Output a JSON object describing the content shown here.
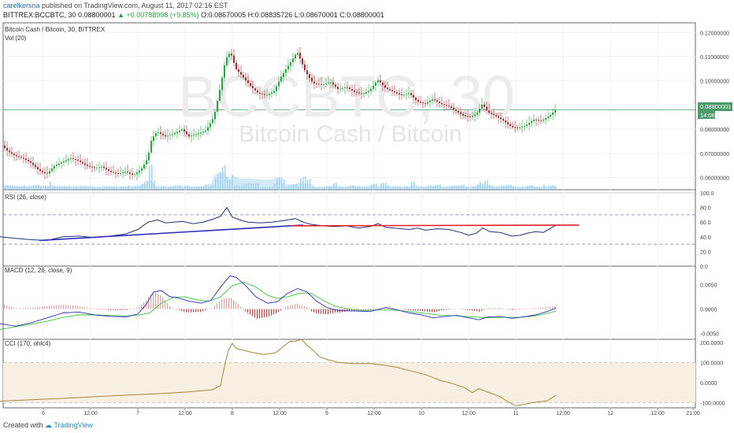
{
  "header": {
    "author": "carelkersna",
    "published": "published on TradingView.com, August 11, 2017 02:16 EST",
    "symbol_line": "BITTREX:BCCBTC, 30  0.08800001",
    "change": "+0.00788998 (+9.85%)",
    "ohlc": "O:0.08670005 H:0.08835726 L:0.08670001 C:0.08800001"
  },
  "footer": {
    "created_with": "Created with",
    "brand": "TradingView"
  },
  "colors": {
    "up": "#26a541",
    "down": "#a12a31",
    "volume": "#9ad0ee",
    "volume_area": "#7ec3ea",
    "rsi_line": "#1e2f7a",
    "rsi_trend_support": "#2e2eb8",
    "rsi_trend_resistance": "#e0212a",
    "macd_line": "#2733b8",
    "signal_line": "#3ec23e",
    "hist_pos": "#e8a0a0",
    "hist_neg": "#d84040",
    "cci_line": "#a8863c",
    "cci_band": "#f6efe2",
    "last_price": "#4a9a6a"
  },
  "chart_data": [
    {
      "type": "candlestick",
      "title": "Bitcoin Cash / Bitcoin, 30, BITTREX",
      "volume_label": "Vol (20)",
      "watermark": "BCCBTC, 30",
      "watermark_sub": "Bitcoin Cash / Bitcoin",
      "y_ticks": [
        "0.12000000",
        "0.11000000",
        "0.10000000",
        "0.09000000",
        "0.08000000",
        "0.07000000",
        "0.06000000"
      ],
      "ylim": [
        0.055,
        0.124
      ],
      "last_price": "0.08800001",
      "countdown": "14:06",
      "x_ticks": [
        "6",
        "12:00",
        "7",
        "12:00",
        "8",
        "12:00",
        "9",
        "12:00",
        "10",
        "12:00",
        "11",
        "12:00",
        "12",
        "12:00",
        "21:00"
      ],
      "close_anchors": [
        [
          0,
          0.0745
        ],
        [
          10,
          0.071
        ],
        [
          20,
          0.069
        ],
        [
          30,
          0.068
        ],
        [
          40,
          0.066
        ],
        [
          50,
          0.063
        ],
        [
          60,
          0.0615
        ],
        [
          70,
          0.065
        ],
        [
          80,
          0.0665
        ],
        [
          90,
          0.068
        ],
        [
          100,
          0.067
        ],
        [
          110,
          0.065
        ],
        [
          120,
          0.064
        ],
        [
          130,
          0.0645
        ],
        [
          140,
          0.0625
        ],
        [
          150,
          0.0615
        ],
        [
          160,
          0.0625
        ],
        [
          170,
          0.061
        ],
        [
          180,
          0.0635
        ],
        [
          188,
          0.068
        ],
        [
          193,
          0.076
        ],
        [
          200,
          0.079
        ],
        [
          210,
          0.077
        ],
        [
          220,
          0.078
        ],
        [
          232,
          0.08
        ],
        [
          240,
          0.077
        ],
        [
          250,
          0.078
        ],
        [
          262,
          0.0795
        ],
        [
          272,
          0.085
        ],
        [
          280,
          0.097
        ],
        [
          287,
          0.109
        ],
        [
          293,
          0.112
        ],
        [
          300,
          0.105
        ],
        [
          308,
          0.102
        ],
        [
          318,
          0.098
        ],
        [
          328,
          0.095
        ],
        [
          338,
          0.094
        ],
        [
          348,
          0.0955
        ],
        [
          358,
          0.102
        ],
        [
          368,
          0.107
        ],
        [
          378,
          0.112
        ],
        [
          388,
          0.104
        ],
        [
          398,
          0.099
        ],
        [
          410,
          0.0985
        ],
        [
          420,
          0.0995
        ],
        [
          430,
          0.0965
        ],
        [
          440,
          0.0975
        ],
        [
          450,
          0.0955
        ],
        [
          460,
          0.0945
        ],
        [
          470,
          0.096
        ],
        [
          480,
          0.1005
        ],
        [
          490,
          0.097
        ],
        [
          500,
          0.0955
        ],
        [
          510,
          0.094
        ],
        [
          520,
          0.095
        ],
        [
          530,
          0.0915
        ],
        [
          540,
          0.0905
        ],
        [
          550,
          0.0925
        ],
        [
          560,
          0.0905
        ],
        [
          570,
          0.0895
        ],
        [
          580,
          0.0875
        ],
        [
          590,
          0.0855
        ],
        [
          598,
          0.085
        ],
        [
          606,
          0.0865
        ],
        [
          613,
          0.0905
        ],
        [
          620,
          0.087
        ],
        [
          630,
          0.0855
        ],
        [
          640,
          0.0835
        ],
        [
          650,
          0.081
        ],
        [
          658,
          0.0805
        ],
        [
          668,
          0.0815
        ],
        [
          678,
          0.084
        ],
        [
          688,
          0.0835
        ],
        [
          698,
          0.0855
        ],
        [
          706,
          0.088
        ]
      ]
    },
    {
      "type": "line",
      "title": "RSI (26, close)",
      "y_ticks": [
        "100.0",
        "80.0",
        "60.0",
        "40.0",
        "20.0",
        "0.0"
      ],
      "ylim": [
        0,
        100
      ],
      "bands": [
        70,
        30
      ],
      "values": [
        [
          0,
          40
        ],
        [
          20,
          38
        ],
        [
          40,
          36
        ],
        [
          60,
          35
        ],
        [
          80,
          40
        ],
        [
          100,
          41
        ],
        [
          120,
          39
        ],
        [
          140,
          41
        ],
        [
          160,
          44
        ],
        [
          175,
          50
        ],
        [
          188,
          60
        ],
        [
          200,
          63
        ],
        [
          210,
          59
        ],
        [
          220,
          60
        ],
        [
          232,
          61
        ],
        [
          245,
          58
        ],
        [
          258,
          60
        ],
        [
          270,
          64
        ],
        [
          280,
          68
        ],
        [
          288,
          80
        ],
        [
          295,
          67
        ],
        [
          305,
          63
        ],
        [
          315,
          60
        ],
        [
          330,
          59
        ],
        [
          345,
          60
        ],
        [
          360,
          62
        ],
        [
          375,
          65
        ],
        [
          385,
          60
        ],
        [
          395,
          57
        ],
        [
          410,
          55
        ],
        [
          425,
          54
        ],
        [
          440,
          55
        ],
        [
          455,
          52
        ],
        [
          470,
          54
        ],
        [
          480,
          58
        ],
        [
          490,
          53
        ],
        [
          500,
          52
        ],
        [
          510,
          51
        ],
        [
          520,
          50
        ],
        [
          530,
          52
        ],
        [
          540,
          49
        ],
        [
          555,
          51
        ],
        [
          570,
          50
        ],
        [
          585,
          46
        ],
        [
          595,
          42
        ],
        [
          605,
          45
        ],
        [
          613,
          52
        ],
        [
          622,
          47
        ],
        [
          635,
          46
        ],
        [
          650,
          41
        ],
        [
          660,
          42
        ],
        [
          670,
          45
        ],
        [
          680,
          47
        ],
        [
          690,
          46
        ],
        [
          698,
          51
        ],
        [
          706,
          56
        ]
      ],
      "trendlines": [
        {
          "role": "support",
          "from": [
            50,
            35
          ],
          "to": [
            385,
            56
          ]
        },
        {
          "role": "resistance",
          "from": [
            370,
            55
          ],
          "to": [
            735,
            56
          ]
        }
      ]
    },
    {
      "type": "line",
      "title": "MACD (12, 26, close, 9)",
      "y_ticks": [
        "0.0050",
        "0.0000",
        "-0.0050"
      ],
      "ylim": [
        -0.0062,
        0.0088
      ],
      "macd": [
        [
          0,
          -0.003
        ],
        [
          20,
          -0.0035
        ],
        [
          40,
          -0.0028
        ],
        [
          60,
          -0.0018
        ],
        [
          80,
          -0.0008
        ],
        [
          100,
          -0.0006
        ],
        [
          120,
          -0.0012
        ],
        [
          140,
          -0.0015
        ],
        [
          160,
          -0.0016
        ],
        [
          175,
          -0.001
        ],
        [
          185,
          0.0008
        ],
        [
          195,
          0.0035
        ],
        [
          205,
          0.0038
        ],
        [
          215,
          0.0026
        ],
        [
          228,
          0.0022
        ],
        [
          240,
          0.0016
        ],
        [
          255,
          0.0012
        ],
        [
          268,
          0.0018
        ],
        [
          280,
          0.0045
        ],
        [
          292,
          0.0068
        ],
        [
          300,
          0.0065
        ],
        [
          312,
          0.0048
        ],
        [
          325,
          0.0025
        ],
        [
          340,
          0.0012
        ],
        [
          352,
          0.0015
        ],
        [
          365,
          0.0032
        ],
        [
          378,
          0.0042
        ],
        [
          390,
          0.0035
        ],
        [
          402,
          0.0016
        ],
        [
          415,
          0.0003
        ],
        [
          430,
          -0.0003
        ],
        [
          450,
          -0.0004
        ],
        [
          470,
          -0.0005
        ],
        [
          490,
          0.0003
        ],
        [
          505,
          -0.0002
        ],
        [
          520,
          -0.0008
        ],
        [
          535,
          -0.0012
        ],
        [
          550,
          -0.0018
        ],
        [
          565,
          -0.0015
        ],
        [
          580,
          -0.0013
        ],
        [
          595,
          -0.0018
        ],
        [
          608,
          -0.0022
        ],
        [
          620,
          -0.0016
        ],
        [
          635,
          -0.0015
        ],
        [
          650,
          -0.0019
        ],
        [
          665,
          -0.0016
        ],
        [
          680,
          -0.0012
        ],
        [
          695,
          -0.0005
        ],
        [
          706,
          0.0002
        ]
      ],
      "signal": [
        [
          0,
          -0.0042
        ],
        [
          20,
          -0.0036
        ],
        [
          40,
          -0.0031
        ],
        [
          60,
          -0.0025
        ],
        [
          80,
          -0.0017
        ],
        [
          100,
          -0.0012
        ],
        [
          120,
          -0.0012
        ],
        [
          140,
          -0.0013
        ],
        [
          160,
          -0.0014
        ],
        [
          175,
          -0.0013
        ],
        [
          190,
          -0.0008
        ],
        [
          205,
          0.0012
        ],
        [
          220,
          0.0024
        ],
        [
          235,
          0.0025
        ],
        [
          250,
          0.0019
        ],
        [
          265,
          0.0016
        ],
        [
          280,
          0.0025
        ],
        [
          295,
          0.0048
        ],
        [
          310,
          0.0055
        ],
        [
          325,
          0.0045
        ],
        [
          340,
          0.0028
        ],
        [
          352,
          0.0022
        ],
        [
          365,
          0.0025
        ],
        [
          380,
          0.0032
        ],
        [
          395,
          0.0032
        ],
        [
          410,
          0.0018
        ],
        [
          425,
          0.0006
        ],
        [
          440,
          0.0001
        ],
        [
          460,
          -0.0003
        ],
        [
          480,
          -0.0002
        ],
        [
          500,
          -0.0002
        ],
        [
          520,
          -0.0005
        ],
        [
          540,
          -0.0009
        ],
        [
          560,
          -0.0013
        ],
        [
          580,
          -0.0014
        ],
        [
          600,
          -0.0016
        ],
        [
          620,
          -0.0018
        ],
        [
          640,
          -0.0017
        ],
        [
          660,
          -0.0017
        ],
        [
          680,
          -0.0014
        ],
        [
          695,
          -0.0009
        ],
        [
          706,
          -0.0004
        ]
      ]
    },
    {
      "type": "line",
      "title": "CCI (170, ohlc4)",
      "y_ticks": [
        "200.0000",
        "100.0000",
        "0.0000",
        "-100.0000"
      ],
      "ylim": [
        -125,
        215
      ],
      "band": [
        100,
        -100
      ],
      "values": [
        [
          0,
          -92
        ],
        [
          40,
          -85
        ],
        [
          80,
          -78
        ],
        [
          120,
          -70
        ],
        [
          160,
          -62
        ],
        [
          200,
          -55
        ],
        [
          240,
          -46
        ],
        [
          270,
          -35
        ],
        [
          280,
          -15
        ],
        [
          285,
          80
        ],
        [
          290,
          160
        ],
        [
          295,
          195
        ],
        [
          300,
          170
        ],
        [
          310,
          160
        ],
        [
          320,
          150
        ],
        [
          335,
          140
        ],
        [
          350,
          148
        ],
        [
          360,
          180
        ],
        [
          368,
          205
        ],
        [
          375,
          205
        ],
        [
          383,
          215
        ],
        [
          390,
          185
        ],
        [
          398,
          160
        ],
        [
          405,
          130
        ],
        [
          415,
          115
        ],
        [
          430,
          100
        ],
        [
          450,
          95
        ],
        [
          470,
          95
        ],
        [
          490,
          85
        ],
        [
          505,
          75
        ],
        [
          520,
          60
        ],
        [
          540,
          40
        ],
        [
          560,
          10
        ],
        [
          575,
          -5
        ],
        [
          590,
          -25
        ],
        [
          600,
          -50
        ],
        [
          608,
          -30
        ],
        [
          615,
          -40
        ],
        [
          625,
          -55
        ],
        [
          635,
          -70
        ],
        [
          645,
          -95
        ],
        [
          655,
          -115
        ],
        [
          665,
          -108
        ],
        [
          675,
          -100
        ],
        [
          685,
          -95
        ],
        [
          695,
          -90
        ],
        [
          706,
          -62
        ]
      ]
    }
  ]
}
